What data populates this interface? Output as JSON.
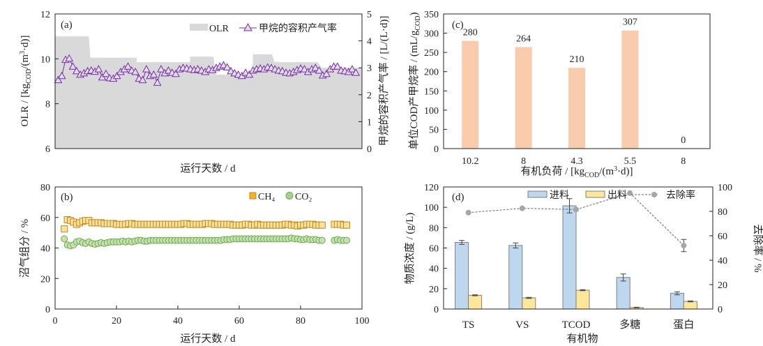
{
  "chart_data": [
    {
      "panel": "(a)",
      "type": "area+line",
      "xlabel": "运行天数 / d",
      "ylabel_left": {
        "main": "OLR / [kg",
        "sub": "COD",
        "rest": "/(m",
        "sup": "3",
        "end": "·d)]"
      },
      "ylabel_right": "甲烷的容积产气率 / [L/(L·d)]",
      "ylim_left": [
        6,
        12
      ],
      "ylim_right": [
        0,
        5
      ],
      "xlim": [
        0,
        100
      ],
      "yticks_left": [
        6,
        8,
        10,
        12
      ],
      "yticks_right": [
        0,
        1,
        2,
        3,
        4,
        5
      ],
      "legend": {
        "olr": "OLR",
        "methane": "甲烷的容积产气率"
      },
      "olr_steps": [
        [
          0,
          11,
          11
        ],
        [
          11.5,
          26.6,
          10.05
        ],
        [
          26.6,
          44,
          9.85
        ],
        [
          44,
          51.6,
          10.1
        ],
        [
          52.3,
          64.3,
          9.3
        ],
        [
          64.5,
          70.7,
          10.2
        ],
        [
          71.5,
          85.5,
          9.85
        ],
        [
          87,
          100,
          9.6
        ]
      ],
      "methane_rate": [
        2.55,
        2.7,
        3.3,
        3.35,
        3.05,
        2.88,
        2.75,
        2.8,
        2.88,
        2.9,
        2.86,
        2.95,
        2.65,
        2.78,
        2.62,
        2.6,
        2.7,
        2.85,
        2.95,
        3.05,
        2.9,
        2.85,
        2.6,
        2.55,
        2.95,
        2.7,
        2.75,
        2.45,
        2.95,
        2.8,
        2.9,
        2.82,
        2.78,
        2.95,
        3.0,
        2.98,
        2.95,
        2.92,
        2.95,
        2.9,
        2.85,
        2.95,
        2.92,
        3.0,
        3.05,
        3.1,
        3.02,
        2.88,
        2.8,
        2.75,
        2.7,
        2.82,
        2.75,
        2.9,
        2.95,
        2.98,
        2.95,
        3.02,
        3.0,
        2.95,
        2.9,
        2.88,
        2.82,
        2.8,
        2.85,
        2.92,
        2.98,
        2.95,
        2.85,
        2.95,
        3.0,
        2.9,
        2.72,
        2.78,
        2.95,
        3.05,
        3.05,
        2.9,
        2.88,
        2.85,
        2.95,
        2.82
      ],
      "colors": {
        "olr": "#d9d9d9",
        "methane": "#7030a0"
      }
    },
    {
      "panel": "(b)",
      "type": "scatter",
      "xlabel": "运行天数 / d",
      "ylabel": "沼气组分 / %",
      "xlim": [
        0,
        100
      ],
      "ylim": [
        0,
        80
      ],
      "xticks": [
        0,
        20,
        40,
        60,
        80,
        100
      ],
      "yticks": [
        0,
        20,
        40,
        60,
        80
      ],
      "legend": {
        "ch4": "CH₄",
        "co2": "CO₂"
      },
      "days": [
        3,
        4,
        5,
        6,
        7,
        8,
        9,
        10,
        11,
        12,
        13,
        14,
        15,
        16,
        17,
        18,
        19,
        20,
        21,
        22,
        23,
        24,
        25,
        26,
        27,
        28,
        29,
        30,
        31,
        32,
        33,
        34,
        35,
        36,
        37,
        38,
        39,
        40,
        41,
        42,
        43,
        44,
        45,
        46,
        47,
        48,
        49,
        50,
        51,
        52,
        53,
        54,
        55,
        56,
        57,
        58,
        59,
        60,
        61,
        62,
        63,
        64,
        65,
        66,
        67,
        68,
        69,
        70,
        71,
        72,
        73,
        74,
        75,
        76,
        77,
        78,
        79,
        80,
        81,
        82,
        83,
        84,
        85,
        86,
        87,
        91,
        92,
        93,
        94,
        95
      ],
      "ch4": [
        52.5,
        58.5,
        58,
        57,
        55.5,
        56.5,
        57.5,
        58,
        58,
        56.5,
        56.5,
        56.5,
        56.5,
        56,
        56,
        56,
        56,
        55.5,
        55.5,
        55.5,
        55.5,
        56,
        56,
        55.5,
        55.5,
        55.5,
        55.5,
        55.5,
        55.5,
        55.5,
        55.5,
        55.5,
        55.5,
        55.5,
        55.5,
        55.5,
        55.5,
        55.5,
        55.5,
        56,
        56,
        55.5,
        55.5,
        55.5,
        55.5,
        55.5,
        56,
        56,
        56,
        55.5,
        55.5,
        55.5,
        55.5,
        55.5,
        55.5,
        55,
        55,
        55,
        55,
        55.5,
        55.5,
        55,
        55,
        55.5,
        55,
        55,
        55,
        55,
        55,
        55,
        55,
        55,
        55.5,
        55.5,
        55,
        55,
        54.5,
        55,
        55,
        55.5,
        55.5,
        55.5,
        55,
        55,
        55,
        55.5,
        55.5,
        55.5,
        55,
        55
      ],
      "co2": [
        46,
        42,
        41.5,
        42,
        44,
        44.5,
        43.5,
        43,
        44,
        43,
        42.5,
        43,
        43.5,
        43,
        43.5,
        44,
        44,
        44,
        44,
        44.5,
        44,
        44.5,
        44,
        44.5,
        45,
        45,
        44.5,
        44.5,
        45,
        45,
        45,
        45,
        45,
        45,
        45,
        45,
        45,
        45,
        45,
        45,
        45,
        45,
        45,
        45,
        45,
        45,
        45,
        45,
        45,
        45,
        45,
        45,
        45.5,
        45.5,
        45.5,
        46,
        46,
        46,
        46,
        46,
        46,
        46,
        46,
        46,
        46,
        46,
        46,
        46,
        46,
        46,
        46,
        46,
        46,
        46,
        46.5,
        46,
        46,
        45.5,
        45.5,
        46,
        45.5,
        45.5,
        45.5,
        45,
        45,
        45,
        45.5,
        45,
        45,
        45
      ],
      "colors": {
        "ch4": "#f5b225",
        "co2": "#70ad47",
        "ylabel": "#a0361e"
      }
    },
    {
      "panel": "(c)",
      "type": "bar",
      "xlabel": {
        "main": "有机负荷 / [kg",
        "sub": "COD",
        "rest": "/(m",
        "sup": "3",
        "end": "·d)]"
      },
      "ylabel": {
        "main": "单位COD产甲烷率 / (mL/g",
        "sub": "COD",
        "end": ")"
      },
      "ylim": [
        0,
        350
      ],
      "yticks": [
        0,
        50,
        100,
        150,
        200,
        250,
        300,
        350
      ],
      "categories": [
        "10.2",
        "8",
        "4.3",
        "5.5",
        "8"
      ],
      "values": [
        280,
        264,
        210,
        307,
        0
      ],
      "colors": {
        "bar": "#f8cbad",
        "ylabel": "#a0361e"
      }
    },
    {
      "panel": "(d)",
      "type": "bar+line",
      "xlabel": "有机物",
      "ylabel_left": "物质浓度 / (g/L)",
      "ylabel_right": "去除率 / %",
      "ylim_left": [
        0,
        120
      ],
      "ylim_right": [
        0,
        100
      ],
      "yticks_left": [
        0,
        20,
        40,
        60,
        80,
        100,
        120
      ],
      "yticks_right": [
        0,
        20,
        40,
        60,
        80,
        100
      ],
      "categories": [
        "TS",
        "VS",
        "TCOD",
        "多糖",
        "蛋白"
      ],
      "legend": {
        "in": "进料",
        "out": "出料",
        "rate": "去除率"
      },
      "series": [
        {
          "name": "进料",
          "values": [
            65.5,
            62.5,
            101.5,
            31,
            15.5
          ],
          "errors": [
            2,
            2.5,
            7,
            3.5,
            1.5
          ]
        },
        {
          "name": "出料",
          "values": [
            13.5,
            11,
            18.5,
            1.5,
            7.5
          ],
          "errors": [
            0.5,
            0.5,
            0.5,
            0.3,
            0.5
          ]
        },
        {
          "name": "去除率",
          "values": [
            79,
            82.5,
            81.5,
            95,
            52
          ],
          "errors": [
            0,
            0,
            0,
            0,
            5
          ]
        }
      ],
      "colors": {
        "in": "#bdd7ee",
        "out": "#ffe699",
        "rate": "#a6a6a6",
        "ylabel_right": "#7f7f7f"
      }
    }
  ]
}
